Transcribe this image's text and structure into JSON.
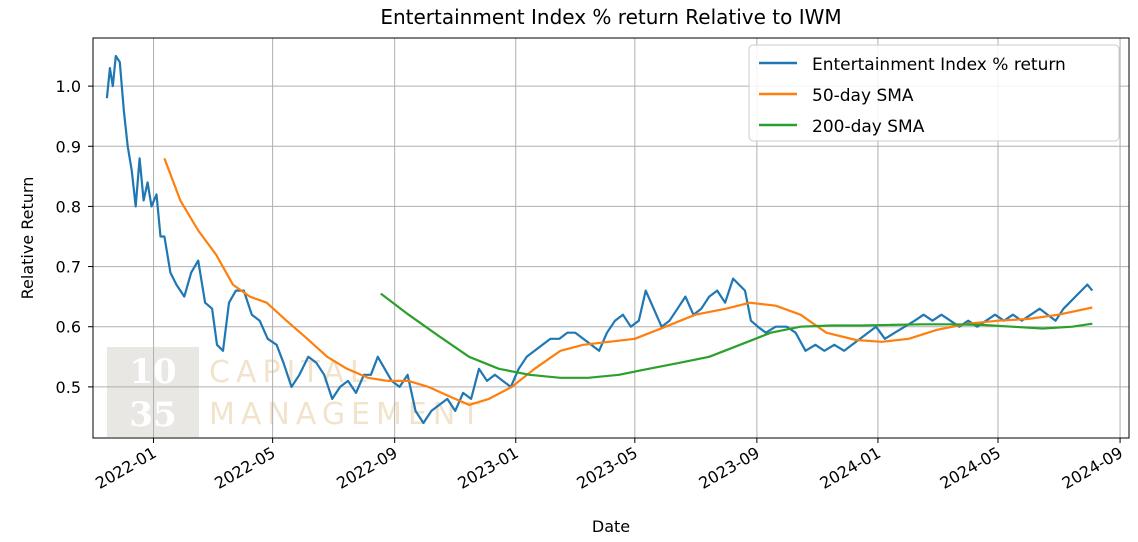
{
  "chart_data": {
    "type": "line",
    "title": "Entertainment Index % return Relative to IWM",
    "xlabel": "Date",
    "ylabel": "Relative Return",
    "x_range": [
      "2021-11-01",
      "2024-09-10"
    ],
    "y_range": [
      0.415,
      1.08
    ],
    "grid": true,
    "legend_position": "top-right",
    "x_ticks": [
      "2022-01",
      "2022-05",
      "2022-09",
      "2023-01",
      "2023-05",
      "2023-09",
      "2024-01",
      "2024-05",
      "2024-09"
    ],
    "y_ticks": [
      0.5,
      0.6,
      0.7,
      0.8,
      0.9,
      1.0
    ],
    "y_tick_labels": [
      "0.5",
      "0.6",
      "0.7",
      "0.8",
      "0.9",
      "1.0"
    ],
    "series": [
      {
        "name": "Entertainment Index % return",
        "color": "#1f77b4",
        "points": [
          [
            "2021-11-15",
            0.98
          ],
          [
            "2021-11-18",
            1.03
          ],
          [
            "2021-11-21",
            1.0
          ],
          [
            "2021-11-24",
            1.05
          ],
          [
            "2021-11-28",
            1.04
          ],
          [
            "2021-12-02",
            0.96
          ],
          [
            "2021-12-06",
            0.9
          ],
          [
            "2021-12-10",
            0.86
          ],
          [
            "2021-12-14",
            0.8
          ],
          [
            "2021-12-18",
            0.88
          ],
          [
            "2021-12-22",
            0.81
          ],
          [
            "2021-12-26",
            0.84
          ],
          [
            "2021-12-30",
            0.8
          ],
          [
            "2022-01-04",
            0.82
          ],
          [
            "2022-01-08",
            0.75
          ],
          [
            "2022-01-12",
            0.75
          ],
          [
            "2022-01-18",
            0.69
          ],
          [
            "2022-01-24",
            0.67
          ],
          [
            "2022-02-01",
            0.65
          ],
          [
            "2022-02-08",
            0.69
          ],
          [
            "2022-02-15",
            0.71
          ],
          [
            "2022-02-22",
            0.64
          ],
          [
            "2022-03-01",
            0.63
          ],
          [
            "2022-03-06",
            0.57
          ],
          [
            "2022-03-12",
            0.56
          ],
          [
            "2022-03-18",
            0.64
          ],
          [
            "2022-03-25",
            0.66
          ],
          [
            "2022-04-02",
            0.66
          ],
          [
            "2022-04-10",
            0.62
          ],
          [
            "2022-04-18",
            0.61
          ],
          [
            "2022-04-26",
            0.58
          ],
          [
            "2022-05-05",
            0.57
          ],
          [
            "2022-05-12",
            0.54
          ],
          [
            "2022-05-20",
            0.5
          ],
          [
            "2022-05-28",
            0.52
          ],
          [
            "2022-06-06",
            0.55
          ],
          [
            "2022-06-14",
            0.54
          ],
          [
            "2022-06-22",
            0.52
          ],
          [
            "2022-06-30",
            0.48
          ],
          [
            "2022-07-08",
            0.5
          ],
          [
            "2022-07-16",
            0.51
          ],
          [
            "2022-07-24",
            0.49
          ],
          [
            "2022-08-01",
            0.52
          ],
          [
            "2022-08-08",
            0.52
          ],
          [
            "2022-08-15",
            0.55
          ],
          [
            "2022-08-22",
            0.53
          ],
          [
            "2022-08-29",
            0.51
          ],
          [
            "2022-09-06",
            0.5
          ],
          [
            "2022-09-14",
            0.52
          ],
          [
            "2022-09-22",
            0.46
          ],
          [
            "2022-09-30",
            0.44
          ],
          [
            "2022-10-08",
            0.46
          ],
          [
            "2022-10-16",
            0.47
          ],
          [
            "2022-10-24",
            0.48
          ],
          [
            "2022-11-01",
            0.46
          ],
          [
            "2022-11-09",
            0.49
          ],
          [
            "2022-11-17",
            0.48
          ],
          [
            "2022-11-25",
            0.53
          ],
          [
            "2022-12-03",
            0.51
          ],
          [
            "2022-12-11",
            0.52
          ],
          [
            "2022-12-19",
            0.51
          ],
          [
            "2022-12-27",
            0.5
          ],
          [
            "2023-01-04",
            0.53
          ],
          [
            "2023-01-12",
            0.55
          ],
          [
            "2023-01-20",
            0.56
          ],
          [
            "2023-01-28",
            0.57
          ],
          [
            "2023-02-05",
            0.58
          ],
          [
            "2023-02-14",
            0.58
          ],
          [
            "2023-02-22",
            0.59
          ],
          [
            "2023-03-02",
            0.59
          ],
          [
            "2023-03-10",
            0.58
          ],
          [
            "2023-03-18",
            0.57
          ],
          [
            "2023-03-26",
            0.56
          ],
          [
            "2023-04-03",
            0.59
          ],
          [
            "2023-04-11",
            0.61
          ],
          [
            "2023-04-19",
            0.62
          ],
          [
            "2023-04-27",
            0.6
          ],
          [
            "2023-05-05",
            0.61
          ],
          [
            "2023-05-12",
            0.66
          ],
          [
            "2023-05-20",
            0.63
          ],
          [
            "2023-05-28",
            0.6
          ],
          [
            "2023-06-05",
            0.61
          ],
          [
            "2023-06-13",
            0.63
          ],
          [
            "2023-06-21",
            0.65
          ],
          [
            "2023-06-29",
            0.62
          ],
          [
            "2023-07-07",
            0.63
          ],
          [
            "2023-07-15",
            0.65
          ],
          [
            "2023-07-23",
            0.66
          ],
          [
            "2023-07-31",
            0.64
          ],
          [
            "2023-08-08",
            0.68
          ],
          [
            "2023-08-14",
            0.67
          ],
          [
            "2023-08-20",
            0.66
          ],
          [
            "2023-08-26",
            0.61
          ],
          [
            "2023-09-02",
            0.6
          ],
          [
            "2023-09-10",
            0.59
          ],
          [
            "2023-09-20",
            0.6
          ],
          [
            "2023-10-01",
            0.6
          ],
          [
            "2023-10-10",
            0.59
          ],
          [
            "2023-10-20",
            0.56
          ],
          [
            "2023-10-30",
            0.57
          ],
          [
            "2023-11-08",
            0.56
          ],
          [
            "2023-11-18",
            0.57
          ],
          [
            "2023-11-28",
            0.56
          ],
          [
            "2023-12-06",
            0.57
          ],
          [
            "2023-12-14",
            0.58
          ],
          [
            "2023-12-22",
            0.59
          ],
          [
            "2023-12-30",
            0.6
          ],
          [
            "2024-01-08",
            0.58
          ],
          [
            "2024-01-18",
            0.59
          ],
          [
            "2024-01-28",
            0.6
          ],
          [
            "2024-02-07",
            0.61
          ],
          [
            "2024-02-16",
            0.62
          ],
          [
            "2024-02-25",
            0.61
          ],
          [
            "2024-03-05",
            0.62
          ],
          [
            "2024-03-14",
            0.61
          ],
          [
            "2024-03-23",
            0.6
          ],
          [
            "2024-04-01",
            0.61
          ],
          [
            "2024-04-10",
            0.6
          ],
          [
            "2024-04-19",
            0.61
          ],
          [
            "2024-04-28",
            0.62
          ],
          [
            "2024-05-07",
            0.61
          ],
          [
            "2024-05-16",
            0.62
          ],
          [
            "2024-05-25",
            0.61
          ],
          [
            "2024-06-03",
            0.62
          ],
          [
            "2024-06-12",
            0.63
          ],
          [
            "2024-06-20",
            0.62
          ],
          [
            "2024-06-28",
            0.61
          ],
          [
            "2024-07-06",
            0.63
          ],
          [
            "2024-07-12",
            0.64
          ],
          [
            "2024-07-18",
            0.65
          ],
          [
            "2024-07-24",
            0.66
          ],
          [
            "2024-07-30",
            0.67
          ],
          [
            "2024-08-04",
            0.66
          ]
        ]
      },
      {
        "name": "50-day SMA",
        "color": "#ff7f0e",
        "points": [
          [
            "2022-01-12",
            0.88
          ],
          [
            "2022-01-28",
            0.81
          ],
          [
            "2022-02-15",
            0.76
          ],
          [
            "2022-03-05",
            0.72
          ],
          [
            "2022-03-22",
            0.67
          ],
          [
            "2022-04-08",
            0.65
          ],
          [
            "2022-04-25",
            0.64
          ],
          [
            "2022-05-15",
            0.61
          ],
          [
            "2022-06-05",
            0.58
          ],
          [
            "2022-06-25",
            0.55
          ],
          [
            "2022-07-15",
            0.53
          ],
          [
            "2022-08-05",
            0.515
          ],
          [
            "2022-08-25",
            0.51
          ],
          [
            "2022-09-15",
            0.51
          ],
          [
            "2022-10-05",
            0.5
          ],
          [
            "2022-10-25",
            0.485
          ],
          [
            "2022-11-15",
            0.47
          ],
          [
            "2022-12-05",
            0.48
          ],
          [
            "2022-12-28",
            0.5
          ],
          [
            "2023-01-20",
            0.53
          ],
          [
            "2023-02-15",
            0.56
          ],
          [
            "2023-03-10",
            0.57
          ],
          [
            "2023-04-05",
            0.575
          ],
          [
            "2023-05-01",
            0.58
          ],
          [
            "2023-06-01",
            0.6
          ],
          [
            "2023-07-01",
            0.62
          ],
          [
            "2023-08-01",
            0.63
          ],
          [
            "2023-08-25",
            0.64
          ],
          [
            "2023-09-20",
            0.635
          ],
          [
            "2023-10-15",
            0.62
          ],
          [
            "2023-11-10",
            0.59
          ],
          [
            "2023-12-10",
            0.578
          ],
          [
            "2024-01-05",
            0.575
          ],
          [
            "2024-02-01",
            0.58
          ],
          [
            "2024-03-01",
            0.595
          ],
          [
            "2024-04-01",
            0.605
          ],
          [
            "2024-05-01",
            0.61
          ],
          [
            "2024-06-01",
            0.613
          ],
          [
            "2024-07-01",
            0.62
          ],
          [
            "2024-08-04",
            0.632
          ]
        ]
      },
      {
        "name": "200-day SMA",
        "color": "#2ca02c",
        "points": [
          [
            "2022-08-18",
            0.655
          ],
          [
            "2022-09-15",
            0.62
          ],
          [
            "2022-10-15",
            0.585
          ],
          [
            "2022-11-15",
            0.55
          ],
          [
            "2022-12-15",
            0.53
          ],
          [
            "2023-01-15",
            0.52
          ],
          [
            "2023-02-15",
            0.515
          ],
          [
            "2023-03-15",
            0.515
          ],
          [
            "2023-04-15",
            0.52
          ],
          [
            "2023-05-15",
            0.53
          ],
          [
            "2023-06-15",
            0.54
          ],
          [
            "2023-07-15",
            0.55
          ],
          [
            "2023-08-15",
            0.57
          ],
          [
            "2023-09-15",
            0.59
          ],
          [
            "2023-10-15",
            0.6
          ],
          [
            "2023-11-15",
            0.602
          ],
          [
            "2023-12-15",
            0.602
          ],
          [
            "2024-01-15",
            0.603
          ],
          [
            "2024-02-15",
            0.604
          ],
          [
            "2024-03-15",
            0.604
          ],
          [
            "2024-04-15",
            0.603
          ],
          [
            "2024-05-15",
            0.6
          ],
          [
            "2024-06-15",
            0.597
          ],
          [
            "2024-07-15",
            0.6
          ],
          [
            "2024-08-04",
            0.605
          ]
        ]
      }
    ]
  },
  "watermark": {
    "line1": "10",
    "line2": "35",
    "word1": "CAPITAL",
    "word2": "MANAGEMENT"
  }
}
